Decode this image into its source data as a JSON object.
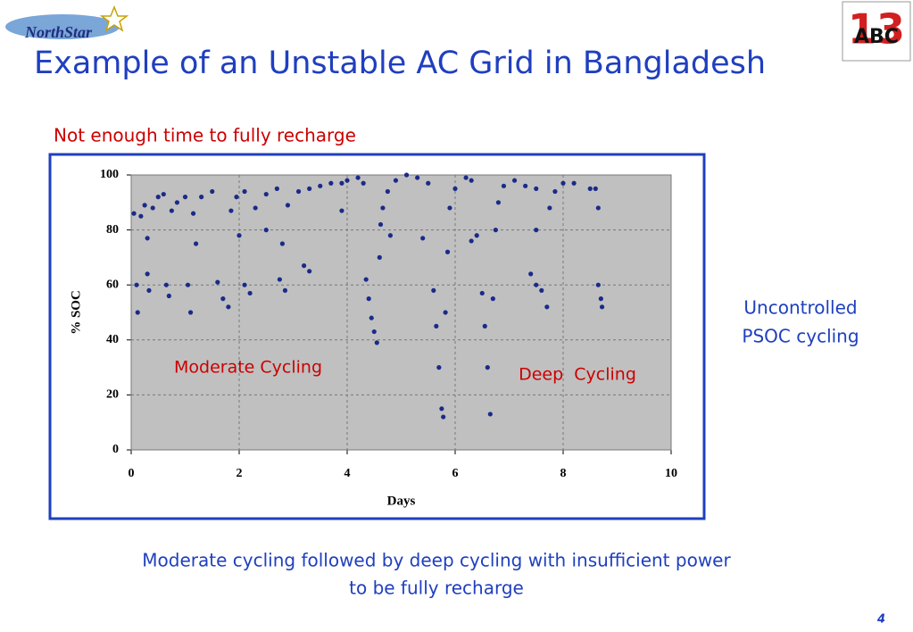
{
  "logo": {
    "brand": "NorthStar",
    "badge_letters": "ABC",
    "badge_number": "13"
  },
  "title": "Example of an Unstable AC Grid in Bangladesh",
  "subtitle": "Not enough time to fully recharge",
  "side_note": [
    "Uncontrolled",
    "PSOC cycling"
  ],
  "footer": [
    "Moderate cycling followed by deep cycling with insufficient power",
    "to be fully recharge"
  ],
  "page_number": "4",
  "chart_data": {
    "type": "scatter",
    "x_label": "Days",
    "y_label": "% SOC",
    "annotations": [
      "Moderate Cycling",
      "Deep  Cycling"
    ],
    "color": "#1a2a8a",
    "xlim": [
      0,
      10
    ],
    "ylim": [
      0,
      100
    ],
    "xticks": [
      0,
      2,
      4,
      6,
      8,
      10
    ],
    "yticks": [
      0,
      20,
      40,
      60,
      80,
      100
    ],
    "grid": true,
    "x": [
      0.05,
      0.1,
      0.12,
      0.18,
      0.25,
      0.3,
      0.33,
      0.4,
      0.5,
      0.6,
      0.65,
      0.7,
      0.75,
      0.85,
      1.0,
      1.05,
      1.1,
      1.15,
      1.3,
      1.5,
      1.6,
      1.7,
      1.8,
      1.85,
      1.95,
      2.1,
      2.1,
      2.2,
      2.3,
      2.5,
      2.7,
      2.75,
      2.85,
      2.9,
      3.1,
      3.3,
      3.3,
      3.5,
      3.7,
      3.9,
      3.9,
      4.0,
      4.2,
      4.3,
      4.35,
      4.4,
      4.45,
      4.5,
      4.55,
      4.6,
      4.62,
      4.66,
      4.75,
      4.9,
      5.1,
      5.3,
      5.5,
      5.6,
      5.65,
      5.7,
      5.75,
      5.78,
      5.82,
      5.86,
      5.9,
      6.0,
      6.2,
      6.3,
      6.4,
      6.5,
      6.55,
      6.6,
      6.65,
      6.7,
      6.75,
      6.8,
      6.9,
      7.1,
      7.3,
      7.5,
      7.5,
      7.6,
      7.7,
      7.75,
      7.85,
      8.0,
      8.2,
      8.5,
      8.6,
      8.65,
      8.65,
      8.7,
      8.72,
      0.3,
      1.2,
      2.0,
      2.8,
      3.2,
      4.8,
      5.4,
      6.3,
      7.5,
      7.4,
      2.5
    ],
    "y": [
      86,
      60,
      50,
      85,
      89,
      64,
      58,
      88,
      92,
      93,
      60,
      56,
      87,
      90,
      92,
      60,
      50,
      86,
      92,
      94,
      61,
      55,
      52,
      87,
      92,
      94,
      60,
      57,
      88,
      93,
      95,
      62,
      58,
      89,
      94,
      95,
      65,
      96,
      97,
      97,
      87,
      98,
      99,
      97,
      62,
      55,
      48,
      43,
      39,
      70,
      82,
      88,
      94,
      98,
      100,
      99,
      97,
      58,
      45,
      30,
      15,
      12,
      50,
      72,
      88,
      95,
      99,
      98,
      78,
      57,
      45,
      30,
      13,
      55,
      80,
      90,
      96,
      98,
      96,
      95,
      60,
      58,
      52,
      88,
      94,
      97,
      97,
      95,
      95,
      88,
      60,
      55,
      52,
      77,
      75,
      78,
      75,
      67,
      78,
      77,
      76,
      80,
      64,
      80
    ]
  }
}
